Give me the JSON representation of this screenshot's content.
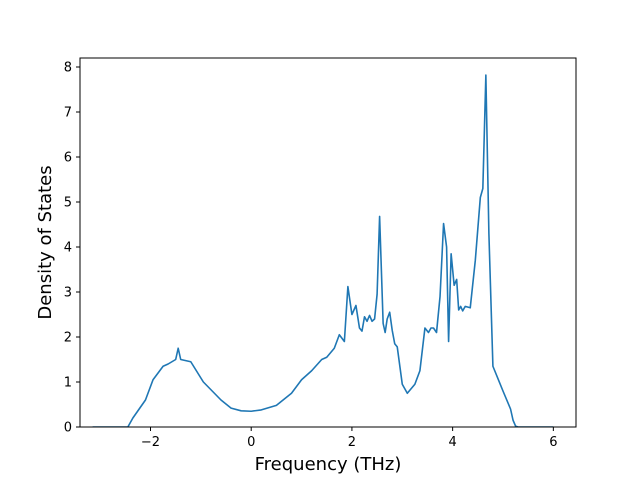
{
  "chart_data": {
    "type": "line",
    "xlabel": "Frequency (THz)",
    "ylabel": "Density of States",
    "xlim": [
      -3.4,
      6.45
    ],
    "ylim": [
      0,
      8.2
    ],
    "x_ticks": [
      -2,
      0,
      2,
      4,
      6
    ],
    "x_tick_labels": [
      "−2",
      "0",
      "2",
      "4",
      "6"
    ],
    "y_ticks": [
      0,
      1,
      2,
      3,
      4,
      5,
      6,
      7,
      8
    ],
    "y_tick_labels": [
      "0",
      "1",
      "2",
      "3",
      "4",
      "5",
      "6",
      "7",
      "8"
    ],
    "grid": false,
    "line_color": "#1f77b4",
    "series": [
      {
        "x": [
          -3.15,
          -2.45,
          -2.35,
          -2.1,
          -2.05,
          -1.95,
          -1.75,
          -1.65,
          -1.5,
          -1.45,
          -1.4,
          -1.2,
          -0.95,
          -0.6,
          -0.4,
          -0.2,
          0.0,
          0.2,
          0.5,
          0.8,
          1.0,
          1.2,
          1.4,
          1.5,
          1.65,
          1.7,
          1.75,
          1.85,
          1.92,
          2.0,
          2.08,
          2.15,
          2.2,
          2.25,
          2.3,
          2.35,
          2.4,
          2.45,
          2.5,
          2.55,
          2.62,
          2.66,
          2.7,
          2.75,
          2.8,
          2.85,
          2.9,
          3.0,
          3.1,
          3.25,
          3.35,
          3.45,
          3.52,
          3.57,
          3.62,
          3.68,
          3.75,
          3.82,
          3.88,
          3.92,
          3.97,
          4.03,
          4.08,
          4.12,
          4.16,
          4.2,
          4.25,
          4.35,
          4.45,
          4.55,
          4.6,
          4.66,
          4.72,
          4.8,
          5.0,
          5.15,
          5.2,
          5.25,
          5.3,
          6.0
        ],
        "y": [
          0.0,
          0.0,
          0.2,
          0.6,
          0.75,
          1.05,
          1.35,
          1.4,
          1.5,
          1.75,
          1.5,
          1.45,
          1.0,
          0.6,
          0.42,
          0.36,
          0.35,
          0.38,
          0.48,
          0.75,
          1.05,
          1.25,
          1.5,
          1.55,
          1.75,
          1.9,
          2.05,
          1.9,
          3.12,
          2.5,
          2.7,
          2.2,
          2.13,
          2.45,
          2.35,
          2.48,
          2.35,
          2.4,
          2.95,
          4.68,
          2.3,
          2.1,
          2.4,
          2.55,
          2.15,
          1.85,
          1.78,
          0.95,
          0.75,
          0.95,
          1.25,
          2.2,
          2.1,
          2.2,
          2.2,
          2.1,
          2.9,
          4.52,
          4.0,
          1.9,
          3.85,
          3.15,
          3.28,
          2.6,
          2.68,
          2.58,
          2.68,
          2.65,
          3.7,
          5.1,
          5.3,
          7.82,
          4.3,
          1.35,
          0.8,
          0.4,
          0.15,
          0.02,
          0.0,
          0.0
        ]
      }
    ]
  }
}
